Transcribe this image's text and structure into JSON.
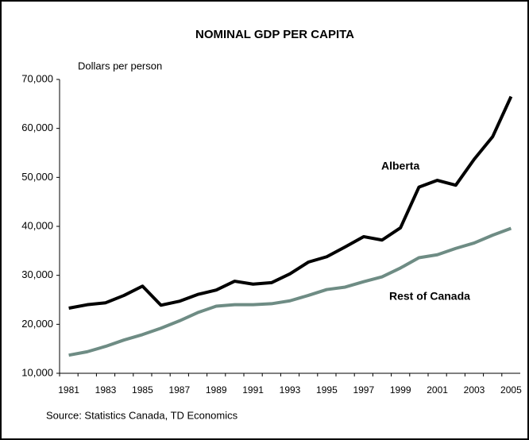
{
  "chart_data": {
    "type": "line",
    "title": "NOMINAL GDP PER CAPITA",
    "y_label": "Dollars per person",
    "source": "Source: Statistics Canada, TD Economics",
    "categories": [
      "1981",
      null,
      "1983",
      null,
      "1985",
      null,
      "1987",
      null,
      "1989",
      null,
      "1991",
      null,
      "1993",
      null,
      "1995",
      null,
      "1997",
      null,
      "1999",
      null,
      "2001",
      null,
      "2003",
      null,
      "2005"
    ],
    "series": [
      {
        "name": "Alberta",
        "color": "#000000",
        "values": [
          23300,
          24000,
          24400,
          25900,
          27800,
          23900,
          24700,
          26100,
          27000,
          28800,
          28200,
          28500,
          30300,
          32700,
          33800,
          35800,
          37900,
          37200,
          39700,
          48000,
          49400,
          48400,
          53700,
          58300,
          66500
        ]
      },
      {
        "name": "Rest of Canada",
        "color": "#6e8c84",
        "values": [
          13700,
          14400,
          15500,
          16800,
          17900,
          19200,
          20700,
          22400,
          23700,
          24000,
          24000,
          24200,
          24800,
          25900,
          27100,
          27600,
          28700,
          29700,
          31500,
          33600,
          34200,
          35500,
          36600,
          38200,
          39600
        ]
      }
    ],
    "ylim": [
      10000,
      70000
    ],
    "yticks": [
      {
        "value": 10000,
        "label": "10,000"
      },
      {
        "value": 20000,
        "label": "20,000"
      },
      {
        "value": 30000,
        "label": "30,000"
      },
      {
        "value": 40000,
        "label": "40,000"
      },
      {
        "value": 50000,
        "label": "50,000"
      },
      {
        "value": 60000,
        "label": "60,000"
      },
      {
        "value": 70000,
        "label": "70,000"
      }
    ],
    "grid": false
  }
}
